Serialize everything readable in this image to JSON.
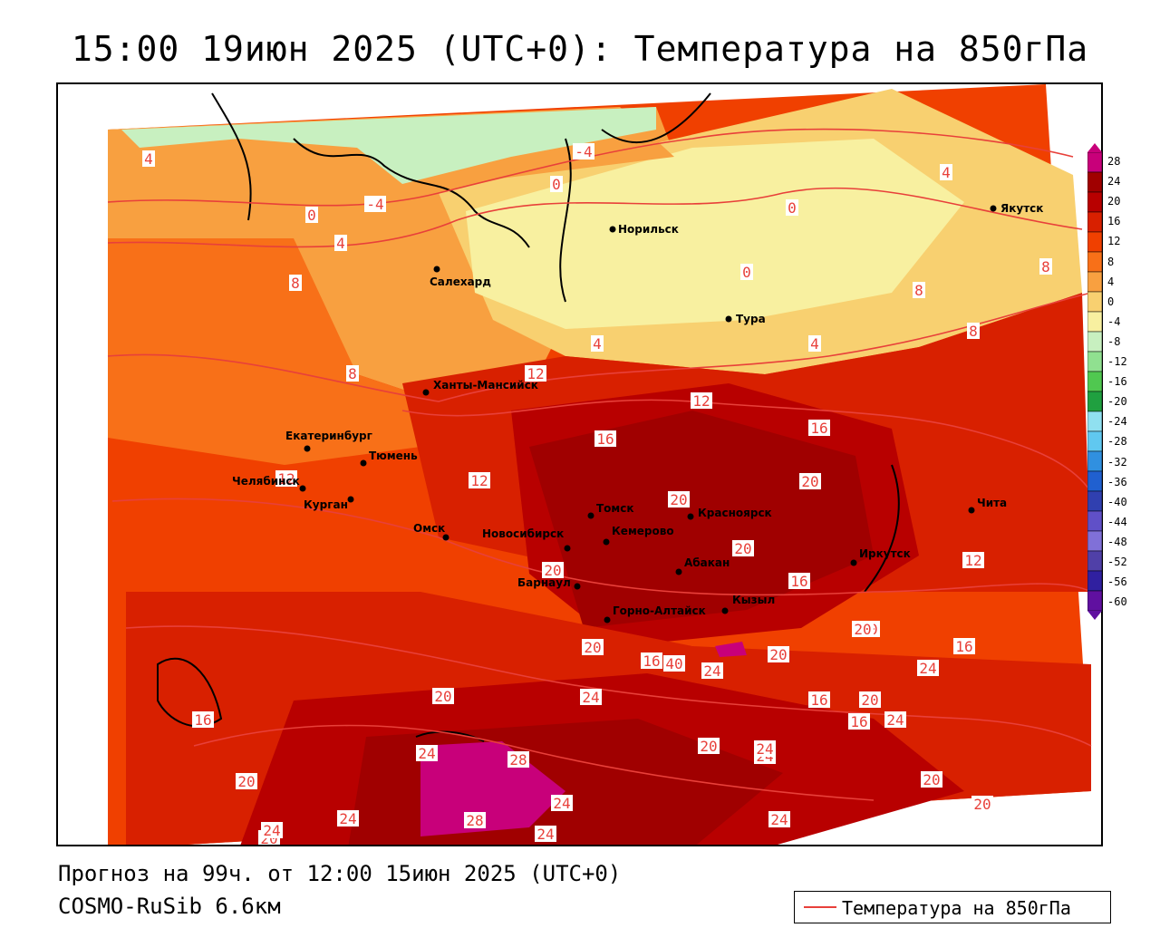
{
  "title": "15:00 19июн 2025 (UTC+0): Температура на 850гПа",
  "footer": {
    "forecast": "Прогноз на 99ч. от 12:00 15июн 2025 (UTC+0)",
    "model": "COSMO-RuSib 6.6км"
  },
  "legend": {
    "label": "Температура на 850гПа",
    "color": "#e8403a"
  },
  "colorbar": {
    "ticks": [
      "28",
      "24",
      "20",
      "16",
      "12",
      "8",
      "4",
      "0",
      "-4",
      "-8",
      "-12",
      "-16",
      "-20",
      "-24",
      "-28",
      "-32",
      "-36",
      "-40",
      "-44",
      "-48",
      "-52",
      "-56",
      "-60"
    ],
    "colors": [
      "#c8007a",
      "#a00000",
      "#b80000",
      "#d82000",
      "#f04000",
      "#f87018",
      "#f8a040",
      "#f8d070",
      "#f8f0a0",
      "#c8f0c0",
      "#90e090",
      "#50c850",
      "#20a040",
      "#90e0f0",
      "#60c8f0",
      "#3090e0",
      "#2060d0",
      "#3040b0",
      "#6050c8",
      "#8070d8",
      "#5040a8",
      "#3020a0",
      "#6010a0"
    ]
  },
  "cities": [
    {
      "name": "Норильск"
    },
    {
      "name": "Якутск"
    },
    {
      "name": "Салехард"
    },
    {
      "name": "Тура"
    },
    {
      "name": "Ханты-Мансийск"
    },
    {
      "name": "Екатеринбург"
    },
    {
      "name": "Тюмень"
    },
    {
      "name": "Челябинск"
    },
    {
      "name": "Курган"
    },
    {
      "name": "Омск"
    },
    {
      "name": "Новосибирск"
    },
    {
      "name": "Томск"
    },
    {
      "name": "Кемерово"
    },
    {
      "name": "Красноярск"
    },
    {
      "name": "Абакан"
    },
    {
      "name": "Барнаул"
    },
    {
      "name": "Горно-Алтайск"
    },
    {
      "name": "Кызыл"
    },
    {
      "name": "Иркутск"
    },
    {
      "name": "Чита"
    }
  ],
  "isotherm_labels": [
    "4",
    "0",
    "-4",
    "4",
    "-4",
    "0",
    "0",
    "4",
    "0",
    "8",
    "8",
    "8",
    "4",
    "4",
    "8",
    "12",
    "16",
    "16",
    "12",
    "8",
    "12",
    "12",
    "20",
    "20",
    "20",
    "16",
    "12",
    "16",
    "20",
    "20",
    "20",
    "16",
    "20",
    "24",
    "16",
    "20",
    "24",
    "20",
    "16",
    "24",
    "20",
    "24",
    "20",
    "16",
    "24",
    "28",
    "24",
    "20",
    "24",
    "20",
    "24",
    "24",
    "28",
    "24",
    "24",
    "20",
    "20",
    "24",
    "40"
  ]
}
